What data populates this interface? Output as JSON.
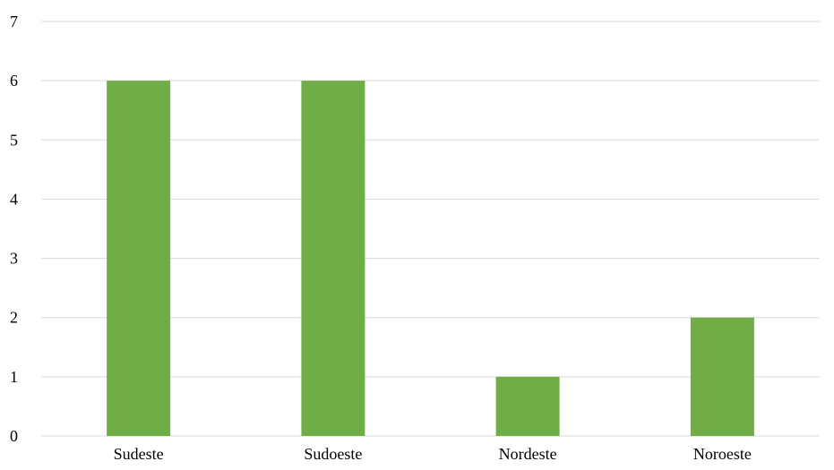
{
  "chart_data": {
    "type": "bar",
    "title": "",
    "xlabel": "",
    "ylabel": "",
    "categories": [
      "Sudeste",
      "Sudoeste",
      "Nordeste",
      "Noroeste"
    ],
    "values": [
      6,
      6,
      1,
      2
    ],
    "ylim": [
      0,
      7
    ],
    "yticks": [
      0,
      1,
      2,
      3,
      4,
      5,
      6,
      7
    ],
    "grid": true,
    "legend": "none",
    "bar_color": "#70ad47",
    "grid_color": "#d9d9d9"
  }
}
